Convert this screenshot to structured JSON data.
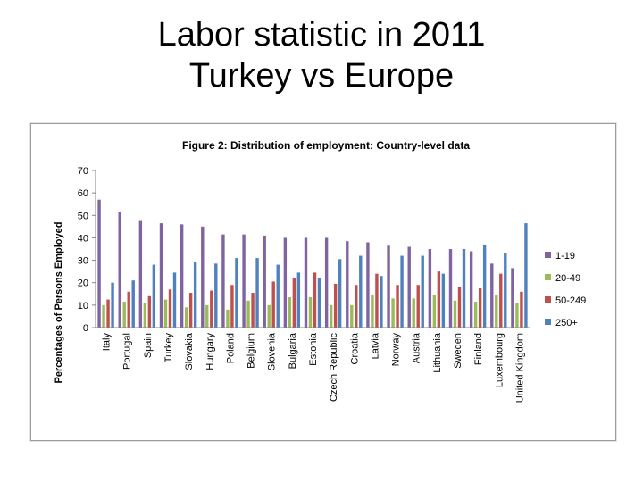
{
  "slide": {
    "title_line1": "Labor statistic in 2011",
    "title_line2": "Turkey vs Europe"
  },
  "chart_data": {
    "type": "bar",
    "title": "Figure 2: Distribution of employment: Country-level data",
    "xlabel": "",
    "ylabel": "Percentages of Persons Employed",
    "ylim": [
      0,
      70
    ],
    "yticks": [
      0,
      10,
      20,
      30,
      40,
      50,
      60,
      70
    ],
    "grid": false,
    "legend_position": "right",
    "categories": [
      "Italy",
      "Portugal",
      "Spain",
      "Turkey",
      "Slovakia",
      "Hungary",
      "Poland",
      "Belgium",
      "Slovenia",
      "Bulgaria",
      "Estonia",
      "Czech Republic",
      "Croatia",
      "Latvia",
      "Norway",
      "Austria",
      "Lithuania",
      "Sweden",
      "Finland",
      "Luxembourg",
      "United Kingdom"
    ],
    "series": [
      {
        "name": "1-19",
        "color": "#8064a2",
        "values": [
          57,
          51.5,
          47.5,
          46.5,
          46,
          45,
          41.5,
          41.5,
          41,
          40,
          40,
          40,
          38.5,
          38,
          36.5,
          36,
          35,
          35,
          34,
          28.5,
          26.5
        ]
      },
      {
        "name": "20-49",
        "color": "#9bbb59",
        "values": [
          10,
          11.5,
          11,
          12.5,
          9,
          10,
          8,
          12,
          10,
          13.5,
          13.5,
          10,
          10,
          14.5,
          13,
          13,
          14.5,
          12,
          11.5,
          14.5,
          11
        ]
      },
      {
        "name": "50-249",
        "color": "#c0504d",
        "values": [
          12.5,
          16,
          14,
          17,
          15.5,
          16.5,
          19,
          15.5,
          20.5,
          22,
          24.5,
          19.5,
          19,
          24,
          19,
          19,
          25,
          18,
          17.5,
          24,
          16
        ]
      },
      {
        "name": "250+",
        "color": "#4f81bd",
        "values": [
          20,
          21,
          28,
          24.5,
          29,
          28.5,
          31,
          31,
          28,
          24.5,
          22,
          30.5,
          32,
          23,
          32,
          32,
          24,
          35,
          37,
          33,
          46.5
        ]
      }
    ]
  }
}
